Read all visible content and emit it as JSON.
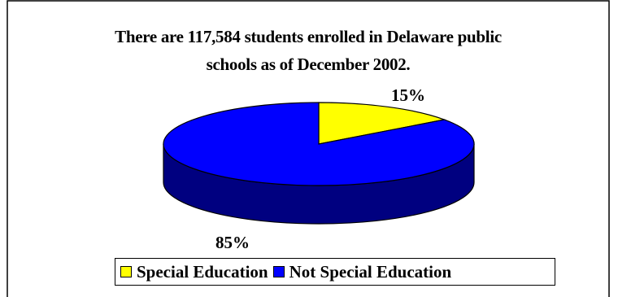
{
  "chart_data": {
    "type": "pie",
    "title_line1": "There are 117,584 students enrolled in Delaware public",
    "title_line2": "schools as of December 2002.",
    "slices": [
      {
        "label": "Special Education",
        "percent": 15,
        "percent_label": "15%",
        "color": "#ffff00"
      },
      {
        "label": "Not Special Education",
        "percent": 85,
        "percent_label": "85%",
        "color": "#0000ff"
      }
    ],
    "side_color": "#000080",
    "legend_position": "bottom",
    "style": "3d-pie"
  }
}
